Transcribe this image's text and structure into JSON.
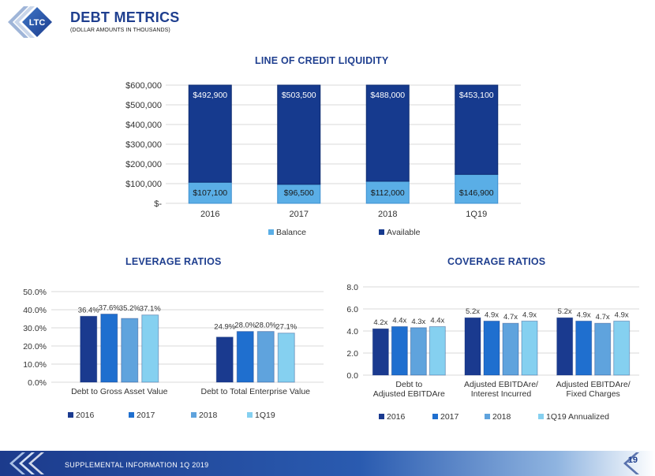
{
  "header": {
    "logo_text": "LTC",
    "title": "DEBT METRICS",
    "subtitle": "(DOLLAR AMOUNTS IN THOUSANDS)"
  },
  "footer": {
    "text": "SUPPLEMENTAL INFORMATION 1Q 2019",
    "page_number": "19"
  },
  "colors": {
    "brand_blue": "#1f3f8f",
    "available": "#163a8e",
    "balance": "#5aaee6",
    "c2016": "#1a3a8f",
    "c2017": "#1f6fcf",
    "c2018": "#5fa3dd",
    "c1q19": "#85d0f0"
  },
  "chart_data": [
    {
      "id": "liquidity",
      "type": "bar",
      "stacked": true,
      "title": "LINE OF CREDIT LIQUIDITY",
      "categories": [
        "2016",
        "2017",
        "2018",
        "1Q19"
      ],
      "series": [
        {
          "name": "Balance",
          "values": [
            107100,
            96500,
            112000,
            146900
          ],
          "labels": [
            "$107,100",
            "$96,500",
            "$112,000",
            "$146,900"
          ]
        },
        {
          "name": "Available",
          "values": [
            492900,
            503500,
            488000,
            453100
          ],
          "labels": [
            "$492,900",
            "$503,500",
            "$488,000",
            "$453,100"
          ]
        }
      ],
      "yticks": [
        "$-",
        "$100,000",
        "$200,000",
        "$300,000",
        "$400,000",
        "$500,000",
        "$600,000"
      ],
      "ylim": [
        0,
        600000
      ],
      "legend": "bottom"
    },
    {
      "id": "leverage",
      "type": "bar",
      "title": "LEVERAGE RATIOS",
      "categories": [
        "Debt to Gross Asset Value",
        "Debt to Total Enterprise Value"
      ],
      "series": [
        {
          "name": "2016",
          "values": [
            36.4,
            24.9
          ],
          "labels": [
            "36.4%",
            "24.9%"
          ]
        },
        {
          "name": "2017",
          "values": [
            37.6,
            28.0
          ],
          "labels": [
            "37.6%",
            "28.0%"
          ]
        },
        {
          "name": "2018",
          "values": [
            35.2,
            28.0
          ],
          "labels": [
            "35.2%",
            "28.0%"
          ]
        },
        {
          "name": "1Q19",
          "values": [
            37.1,
            27.1
          ],
          "labels": [
            "37.1%",
            "27.1%"
          ]
        }
      ],
      "yticks": [
        "0.0%",
        "10.0%",
        "20.0%",
        "30.0%",
        "40.0%",
        "50.0%"
      ],
      "ylim": [
        0,
        50
      ],
      "legend": "bottom"
    },
    {
      "id": "coverage",
      "type": "bar",
      "title": "COVERAGE RATIOS",
      "categories": [
        [
          "Debt to",
          "Adjusted EBITDAre"
        ],
        [
          "Adjusted EBITDAre/",
          "Interest Incurred"
        ],
        [
          "Adjusted EBITDAre/",
          "Fixed Charges"
        ]
      ],
      "series": [
        {
          "name": "2016",
          "values": [
            4.2,
            5.2,
            5.2
          ],
          "labels": [
            "4.2x",
            "5.2x",
            "5.2x"
          ]
        },
        {
          "name": "2017",
          "values": [
            4.4,
            4.9,
            4.9
          ],
          "labels": [
            "4.4x",
            "4.9x",
            "4.9x"
          ]
        },
        {
          "name": "2018",
          "values": [
            4.3,
            4.7,
            4.7
          ],
          "labels": [
            "4.3x",
            "4.7x",
            "4.7x"
          ]
        },
        {
          "name": "1Q19 Annualized",
          "values": [
            4.4,
            4.9,
            4.9
          ],
          "labels": [
            "4.4x",
            "4.9x",
            "4.9x"
          ]
        }
      ],
      "yticks": [
        "0.0",
        "2.0",
        "4.0",
        "6.0",
        "8.0"
      ],
      "ylim": [
        0,
        8
      ],
      "legend": "bottom"
    }
  ]
}
